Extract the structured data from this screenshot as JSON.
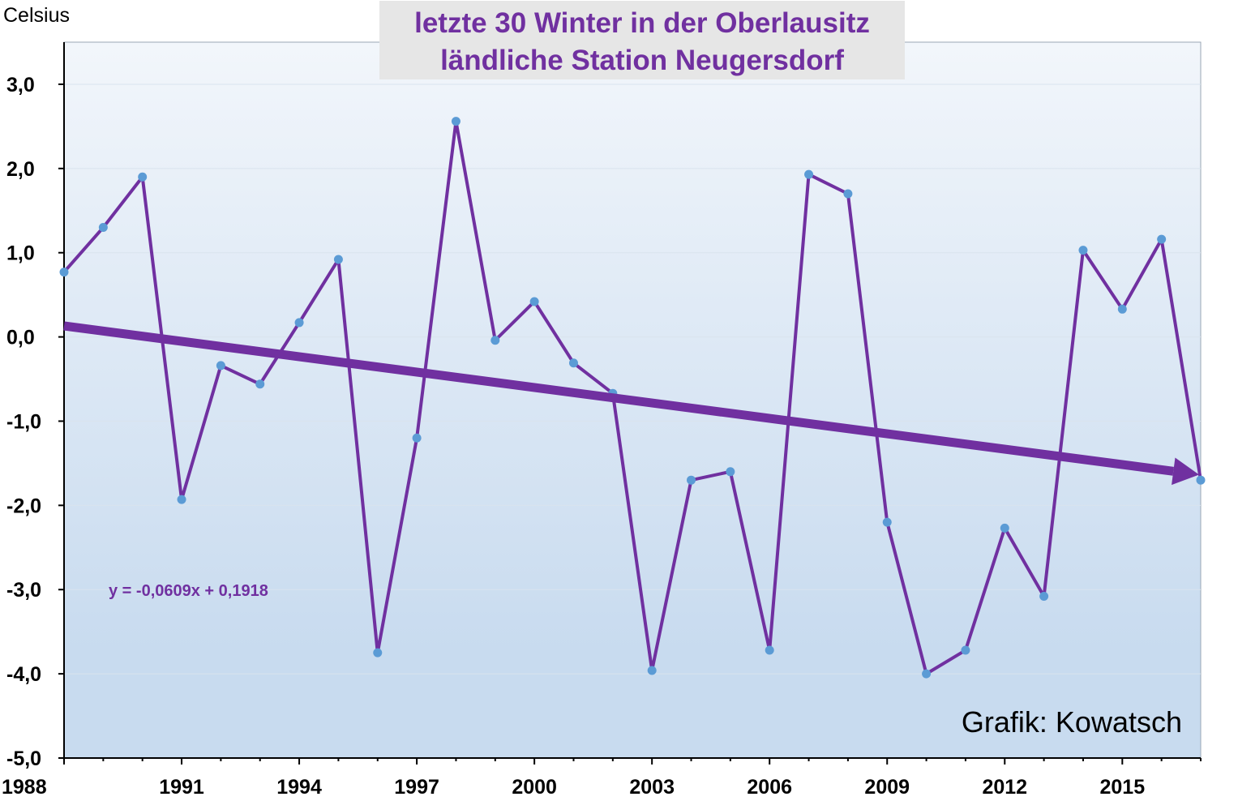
{
  "chart_data": {
    "type": "line",
    "title_lines": [
      "letzte 30 Winter in der Oberlausitz",
      "ländliche Station Neugersdorf"
    ],
    "ylabel": "Celsius",
    "ylim": [
      -5.0,
      3.5
    ],
    "y_ticks": [
      3.0,
      2.0,
      1.0,
      0.0,
      -1.0,
      -2.0,
      -3.0,
      -4.0,
      -5.0
    ],
    "y_tick_labels": [
      "3,0",
      "2,0",
      "1,0",
      "0,0",
      "-1,0",
      "-2,0",
      "-3,0",
      "-4,0",
      "-5,0"
    ],
    "xlim": [
      1988,
      2017
    ],
    "x_tick_labels": [
      "1988",
      "1991",
      "1994",
      "1997",
      "2000",
      "2003",
      "2006",
      "2009",
      "2012",
      "2015"
    ],
    "grid": "horizontal",
    "series": [
      {
        "x": [
          1988,
          1989,
          1990,
          1991,
          1992,
          1993,
          1994,
          1995,
          1996,
          1997,
          1998,
          1999,
          2000,
          2001,
          2002,
          2003,
          2004,
          2005,
          2006,
          2007,
          2008,
          2009,
          2010,
          2011,
          2012,
          2013,
          2014,
          2015,
          2016,
          2017
        ],
        "values": [
          0.77,
          1.3,
          1.9,
          -1.93,
          -0.34,
          -0.56,
          0.17,
          0.92,
          -3.75,
          -1.2,
          2.56,
          -0.04,
          0.42,
          -0.31,
          -0.67,
          -3.96,
          -1.7,
          -1.6,
          -3.72,
          1.93,
          1.7,
          -2.2,
          -4.0,
          -3.72,
          -2.27,
          -3.08,
          1.03,
          0.33,
          1.16,
          -1.7
        ],
        "color": "#7030a0",
        "marker_color": "#5b9bd5"
      }
    ],
    "trendline": {
      "equation": "y = -0,0609x + 0,1918",
      "slope": -0.0609,
      "intercept": 0.1918,
      "color": "#7030a0",
      "style": "arrow"
    },
    "annotation": "Grafik: Kowatsch",
    "colors": {
      "plot_bg_top": "#f2f6fb",
      "plot_bg_bottom": "#c8dbef",
      "title_box": "#e6e6e6",
      "gridline": "#d9e3ee"
    }
  }
}
